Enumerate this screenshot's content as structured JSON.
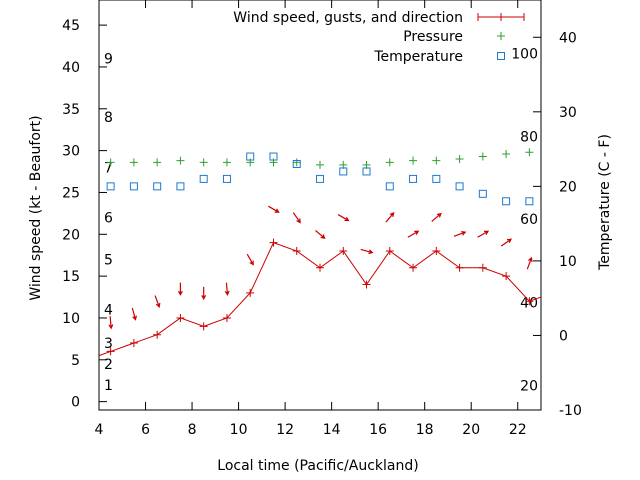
{
  "chart_data": {
    "type": "line",
    "xlabel": "Local time (Pacific/Auckland)",
    "ylabel": "Wind speed (kt - Beaufort)",
    "y2label": "Temperature (C - F)",
    "xlim": [
      4,
      23
    ],
    "ylim": [
      -1,
      48
    ],
    "y2lim": [
      -10,
      45
    ],
    "x_ticks": [
      4,
      6,
      8,
      10,
      12,
      14,
      16,
      18,
      20,
      22
    ],
    "y_ticks": [
      0,
      5,
      10,
      15,
      20,
      25,
      30,
      35,
      40,
      45
    ],
    "y2_ticks": [
      -10,
      0,
      10,
      20,
      30,
      40
    ],
    "beaufort_labels": [
      {
        "text": "1",
        "kt": 2
      },
      {
        "text": "2",
        "kt": 4.5
      },
      {
        "text": "3",
        "kt": 7
      },
      {
        "text": "4",
        "kt": 11
      },
      {
        "text": "5",
        "kt": 17
      },
      {
        "text": "6",
        "kt": 22
      },
      {
        "text": "7",
        "kt": 28
      },
      {
        "text": "8",
        "kt": 34
      },
      {
        "text": "9",
        "kt": 41
      }
    ],
    "fahrenheit_labels": [
      {
        "text": "20",
        "celsius": -6.7
      },
      {
        "text": "40",
        "celsius": 4.4
      },
      {
        "text": "60",
        "celsius": 15.6
      },
      {
        "text": "80",
        "celsius": 26.7
      },
      {
        "text": "100",
        "celsius": 37.8
      }
    ],
    "grid": false,
    "legend_position": "top-right",
    "colors": {
      "wind": "#cc0000",
      "pressure": "#2ca02c",
      "temperature": "#1f78d0"
    },
    "series": [
      {
        "name": "Wind speed, gusts, and direction",
        "axis": "left",
        "x": [
          4,
          4.5,
          5.5,
          6.5,
          7.5,
          8.5,
          9.5,
          10.5,
          11.5,
          12.5,
          13.5,
          14.5,
          15.5,
          16.5,
          17.5,
          18.5,
          19.5,
          20.5,
          21.5,
          22.5,
          23
        ],
        "values": [
          5.5,
          6,
          7,
          8,
          10,
          9,
          10,
          13,
          19,
          18,
          16,
          18,
          14,
          18,
          16,
          18,
          16,
          16,
          15,
          12,
          12.5
        ]
      },
      {
        "name": "Pressure",
        "axis": "left",
        "x": [
          4.5,
          5.5,
          6.5,
          7.5,
          8.5,
          9.5,
          10.5,
          11.5,
          12.5,
          13.5,
          14.5,
          15.5,
          16.5,
          17.5,
          18.5,
          19.5,
          20.5,
          21.5,
          22.5
        ],
        "values": [
          28.6,
          28.6,
          28.6,
          28.8,
          28.6,
          28.6,
          28.6,
          28.6,
          28.6,
          28.3,
          28.3,
          28.3,
          28.6,
          28.8,
          28.8,
          29.0,
          29.3,
          29.6,
          29.8
        ]
      },
      {
        "name": "Temperature",
        "axis": "right",
        "x": [
          4.5,
          5.5,
          6.5,
          7.5,
          8.5,
          9.5,
          10.5,
          11.5,
          12.5,
          13.5,
          14.5,
          15.5,
          16.5,
          17.5,
          18.5,
          19.5,
          20.5,
          21.5,
          22.5
        ],
        "values": [
          20,
          20,
          20,
          20,
          21,
          21,
          24,
          24,
          23,
          21,
          22,
          22,
          20,
          21,
          21,
          20,
          19,
          18,
          18
        ]
      }
    ],
    "wind_direction_arrows": {
      "x": [
        4.5,
        5.5,
        6.5,
        7.5,
        8.5,
        9.5,
        10.5,
        11.5,
        12.5,
        13.5,
        14.5,
        15.5,
        16.5,
        17.5,
        18.5,
        19.5,
        20.5,
        21.5,
        22.5
      ],
      "kt": [
        9.5,
        10.5,
        12,
        13.5,
        13,
        13.5,
        17,
        23,
        22,
        20,
        22,
        18,
        22,
        20,
        22,
        20,
        20,
        19,
        16.5
      ],
      "direction_deg": [
        355,
        345,
        340,
        0,
        0,
        355,
        330,
        300,
        325,
        310,
        300,
        285,
        220,
        240,
        230,
        250,
        240,
        235,
        200
      ]
    }
  }
}
